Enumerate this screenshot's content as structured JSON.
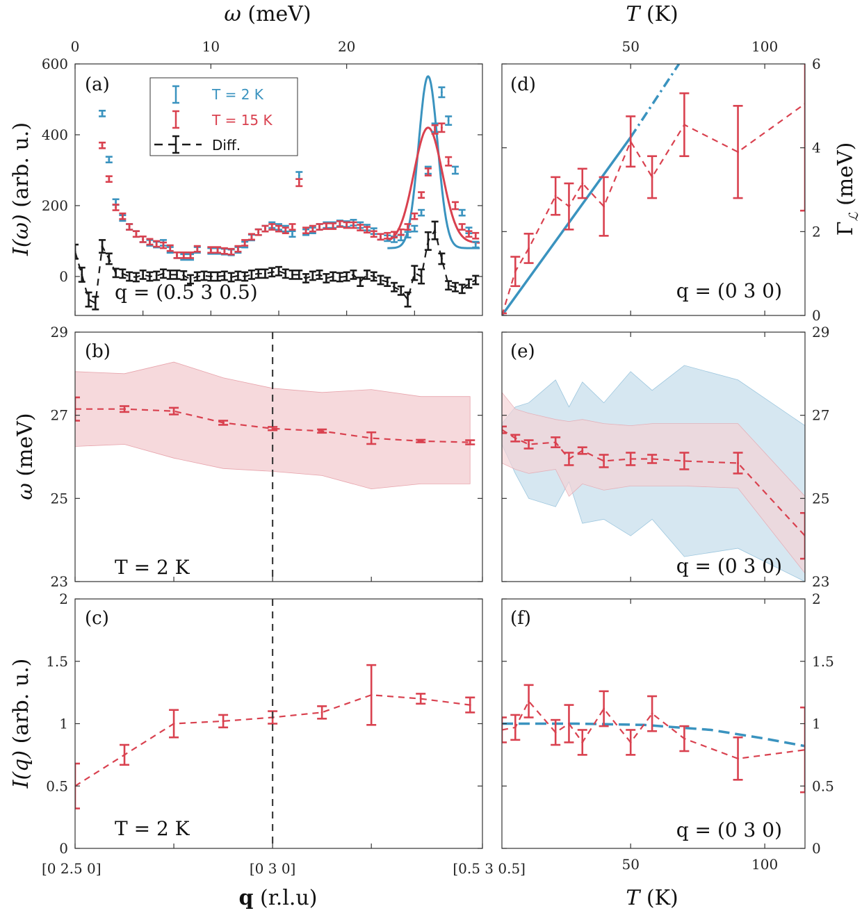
{
  "colors": {
    "blue": "#3a93bf",
    "red": "#d9414f",
    "black": "#1a1a1a",
    "blue_fill": "#cfe3ef",
    "red_fill": "#f5d2d6"
  },
  "chart_data": [
    {
      "panel": "(a)",
      "type": "scatter",
      "xlabel_parts": [
        "ω",
        " (meV)"
      ],
      "ylabel_parts": [
        "I(ω)",
        " (arb. u.)"
      ],
      "xlim": [
        0,
        30
      ],
      "ylim": [
        -110,
        600
      ],
      "xticks": [
        0,
        10,
        20
      ],
      "yticks": [
        0,
        200,
        400,
        600
      ],
      "annotation": "q = (0.5 3 0.5)",
      "legend": [
        "T = 2 K",
        "T = 15 K",
        "Diff."
      ],
      "series": [
        {
          "name": "T = 2 K",
          "color": "blue",
          "x": [
            2,
            2.5,
            3,
            3.5,
            4,
            4.5,
            5,
            5.5,
            6,
            6.5,
            7,
            7.5,
            8,
            8.5,
            9,
            10,
            10.5,
            11,
            11.5,
            12,
            12.5,
            13,
            13.5,
            14,
            14.5,
            15,
            15.5,
            16,
            16.5,
            17,
            17.5,
            18,
            18.5,
            19,
            19.5,
            20,
            20.5,
            21,
            21.5,
            22,
            22.5,
            23,
            23.5,
            24,
            24.5,
            25,
            25.5,
            26,
            26.5,
            27,
            27.5,
            28,
            28.5,
            29,
            29.5
          ],
          "y": [
            460,
            330,
            210,
            165,
            140,
            120,
            105,
            95,
            90,
            95,
            75,
            60,
            55,
            55,
            75,
            72,
            72,
            70,
            68,
            75,
            90,
            110,
            125,
            135,
            145,
            140,
            135,
            120,
            285,
            125,
            130,
            140,
            145,
            145,
            150,
            148,
            152,
            145,
            138,
            128,
            112,
            108,
            105,
            110,
            118,
            135,
            180,
            300,
            420,
            520,
            440,
            300,
            180,
            130,
            90
          ],
          "yerr": [
            8,
            8,
            8,
            8,
            8,
            8,
            8,
            8,
            8,
            8,
            8,
            8,
            8,
            8,
            8,
            8,
            8,
            8,
            8,
            8,
            8,
            8,
            8,
            8,
            8,
            8,
            8,
            8,
            10,
            8,
            8,
            8,
            8,
            8,
            8,
            8,
            8,
            8,
            8,
            8,
            8,
            8,
            8,
            8,
            8,
            8,
            8,
            10,
            12,
            14,
            12,
            10,
            8,
            8,
            8
          ],
          "fit": {
            "baseline": 80,
            "amplitude": 485,
            "center": 26.0,
            "sigma": 0.7,
            "xrange": [
              23,
              29.8
            ]
          }
        },
        {
          "name": "T = 15 K",
          "color": "red",
          "x": [
            2,
            2.5,
            3,
            3.5,
            4,
            4.5,
            5,
            5.5,
            6,
            6.5,
            7,
            7.5,
            8,
            8.5,
            9,
            10,
            10.5,
            11,
            11.5,
            12,
            12.5,
            13,
            13.5,
            14,
            14.5,
            15,
            15.5,
            16,
            16.5,
            17,
            17.5,
            18,
            18.5,
            19,
            19.5,
            20,
            20.5,
            21,
            21.5,
            22,
            22.5,
            23,
            23.5,
            24,
            24.5,
            25,
            25.5,
            26,
            26.5,
            27,
            27.5,
            28,
            28.5,
            29,
            29.5
          ],
          "y": [
            370,
            275,
            195,
            170,
            140,
            120,
            105,
            98,
            92,
            88,
            80,
            60,
            60,
            60,
            78,
            75,
            75,
            72,
            70,
            78,
            95,
            112,
            125,
            135,
            140,
            135,
            130,
            140,
            265,
            130,
            135,
            140,
            142,
            142,
            148,
            145,
            145,
            138,
            132,
            120,
            112,
            115,
            118,
            125,
            140,
            170,
            230,
            295,
            415,
            420,
            325,
            200,
            140,
            120,
            115
          ],
          "yerr": [
            8,
            8,
            8,
            8,
            8,
            8,
            8,
            8,
            8,
            8,
            8,
            8,
            8,
            8,
            8,
            8,
            8,
            8,
            8,
            8,
            8,
            8,
            8,
            8,
            8,
            8,
            8,
            8,
            10,
            8,
            8,
            8,
            8,
            8,
            8,
            8,
            8,
            8,
            8,
            8,
            8,
            8,
            8,
            8,
            8,
            8,
            8,
            10,
            12,
            12,
            12,
            10,
            8,
            8,
            8
          ],
          "fit": {
            "baseline": 95,
            "amplitude": 325,
            "center": 26.0,
            "sigma": 1.05,
            "xrange": [
              23,
              29.8
            ]
          }
        },
        {
          "name": "Diff.",
          "color": "black",
          "x": [
            0,
            0.5,
            1,
            1.5,
            2,
            2.5,
            3,
            3.5,
            4,
            4.5,
            5,
            5.5,
            6,
            6.5,
            7,
            7.5,
            8,
            8.5,
            9,
            9.5,
            10,
            10.5,
            11,
            11.5,
            12,
            12.5,
            13,
            13.5,
            14,
            14.5,
            15,
            15.5,
            16,
            16.5,
            17,
            17.5,
            18,
            18.5,
            19,
            19.5,
            20,
            20.5,
            21,
            21.5,
            22,
            22.5,
            23,
            23.5,
            24,
            24.5,
            25,
            25.5,
            26,
            26.5,
            27,
            27.5,
            28,
            28.5,
            29,
            29.5
          ],
          "y": [
            70,
            5,
            -65,
            -75,
            85,
            50,
            10,
            8,
            0,
            -2,
            5,
            0,
            2,
            8,
            5,
            5,
            3,
            -8,
            0,
            2,
            0,
            0,
            2,
            -2,
            2,
            0,
            5,
            8,
            8,
            12,
            15,
            8,
            5,
            5,
            -5,
            2,
            5,
            -5,
            0,
            -2,
            0,
            5,
            -15,
            5,
            0,
            -10,
            -15,
            -30,
            -40,
            -65,
            10,
            0,
            100,
            130,
            50,
            -25,
            -30,
            -35,
            -20,
            -10
          ],
          "yerr": [
            20,
            20,
            20,
            18,
            18,
            15,
            12,
            12,
            12,
            12,
            12,
            12,
            12,
            12,
            12,
            12,
            12,
            12,
            12,
            12,
            12,
            12,
            12,
            12,
            12,
            12,
            12,
            12,
            12,
            12,
            12,
            12,
            12,
            12,
            12,
            12,
            12,
            12,
            12,
            12,
            12,
            12,
            12,
            12,
            12,
            12,
            12,
            12,
            12,
            20,
            20,
            20,
            25,
            25,
            15,
            12,
            12,
            12,
            12,
            12
          ]
        }
      ]
    },
    {
      "panel": "(b)",
      "type": "line",
      "xlabel_parts": [
        "q",
        " (r.l.u)"
      ],
      "ylabel_parts": [
        "ω",
        " (meV)"
      ],
      "ylim": [
        23,
        29
      ],
      "yticks": [
        23,
        25,
        27,
        29
      ],
      "tick_labels": [
        "[0 2.5 0]",
        "[0 3 0]",
        "[0.5 3 0.5]"
      ],
      "annotation": "T = 2 K",
      "series": [
        {
          "name": "T = 2 K",
          "color": "red",
          "x": [
            0,
            1,
            2,
            3,
            4,
            5,
            6,
            7,
            8
          ],
          "y": [
            27.15,
            27.15,
            27.1,
            26.82,
            26.68,
            26.62,
            26.45,
            26.38,
            26.35
          ],
          "yerr": [
            0.28,
            0.07,
            0.08,
            0.05,
            0.04,
            0.04,
            0.14,
            0.03,
            0.05
          ],
          "band_upper": [
            28.05,
            28.0,
            28.28,
            27.9,
            27.65,
            27.55,
            27.62,
            27.45,
            27.45
          ],
          "band_lower": [
            26.25,
            26.3,
            25.97,
            25.72,
            25.65,
            25.55,
            25.23,
            25.35,
            25.35
          ]
        }
      ]
    },
    {
      "panel": "(c)",
      "type": "line",
      "xlabel_parts": [
        "q",
        " (r.l.u)"
      ],
      "ylabel_parts": [
        "I(q)",
        " (arb. u.)"
      ],
      "ylim": [
        0,
        2
      ],
      "yticks": [
        0,
        0.5,
        1,
        1.5,
        2
      ],
      "tick_labels": [
        "[0 2.5 0]",
        "[0 3 0]",
        "[0.5 3 0.5]"
      ],
      "annotation": "T = 2 K",
      "series": [
        {
          "name": "T = 2 K",
          "color": "red",
          "x": [
            0,
            1,
            2,
            3,
            4,
            5,
            6,
            7,
            8
          ],
          "y": [
            0.5,
            0.75,
            1.0,
            1.02,
            1.05,
            1.09,
            1.23,
            1.2,
            1.15
          ],
          "yerr": [
            0.18,
            0.08,
            0.11,
            0.05,
            0.05,
            0.05,
            0.24,
            0.04,
            0.06
          ]
        }
      ]
    },
    {
      "panel": "(d)",
      "type": "line",
      "xlabel_parts": [
        "T",
        " (K)"
      ],
      "ylabel_parts": [
        "Γ",
        " (meV)"
      ],
      "ylabel_subscript": "ℒ",
      "xlim": [
        2,
        115
      ],
      "ylim": [
        0,
        6
      ],
      "xticks": [
        50,
        100
      ],
      "yticks": [
        0,
        2,
        4,
        6
      ],
      "annotation": "q = (0 3 0)",
      "series": [
        {
          "name": "data",
          "color": "red",
          "x": [
            2,
            7,
            12,
            22,
            27,
            32,
            40,
            50,
            58,
            70,
            90,
            115
          ],
          "y": [
            0,
            1.05,
            1.6,
            2.85,
            2.6,
            3.15,
            2.6,
            4.15,
            3.3,
            4.55,
            3.9,
            5.05
          ],
          "yerr": [
            0.05,
            0.35,
            0.35,
            0.45,
            0.55,
            0.35,
            0.7,
            0.6,
            0.5,
            0.75,
            1.1,
            2.55
          ]
        },
        {
          "name": "linear fit",
          "color": "blue",
          "x": [
            2,
            50
          ],
          "y": [
            0,
            4.25
          ],
          "dashed_to": [
            68,
            6.0
          ]
        }
      ]
    },
    {
      "panel": "(e)",
      "type": "line",
      "xlabel_parts": [
        "T",
        " (K)"
      ],
      "ylabel_parts": [
        "ω",
        " (meV)"
      ],
      "xlim": [
        2,
        115
      ],
      "ylim": [
        23,
        29
      ],
      "xticks": [
        50,
        100
      ],
      "yticks": [
        23,
        25,
        27,
        29
      ],
      "annotation": "q = (0 3 0)",
      "series": [
        {
          "name": "data",
          "color": "red",
          "x": [
            2,
            7,
            12,
            22,
            27,
            32,
            40,
            50,
            58,
            70,
            90,
            115
          ],
          "y": [
            26.65,
            26.45,
            26.3,
            26.35,
            25.95,
            26.15,
            25.9,
            25.95,
            25.95,
            25.9,
            25.85,
            24.1
          ],
          "yerr": [
            0.08,
            0.08,
            0.1,
            0.12,
            0.15,
            0.08,
            0.15,
            0.15,
            0.1,
            0.2,
            0.25,
            0.55
          ],
          "band_upper": [
            27.55,
            27.15,
            27.05,
            26.9,
            26.85,
            26.9,
            26.8,
            26.75,
            26.8,
            26.8,
            26.8,
            25.05
          ],
          "band_lower": [
            25.85,
            25.7,
            25.6,
            25.7,
            25.05,
            25.35,
            25.2,
            25.3,
            25.3,
            25.3,
            25.25,
            23.2
          ]
        },
        {
          "name": "blue band",
          "color": "blue",
          "x": [
            2,
            7,
            12,
            22,
            27,
            32,
            40,
            50,
            58,
            70,
            90,
            115
          ],
          "band_upper": [
            26.8,
            27.2,
            27.3,
            27.85,
            27.2,
            27.8,
            27.3,
            28.05,
            27.6,
            28.2,
            27.85,
            26.75
          ],
          "band_lower": [
            26.3,
            25.6,
            25.0,
            24.8,
            25.4,
            24.4,
            24.5,
            24.1,
            24.5,
            23.6,
            23.8,
            23.0
          ]
        }
      ]
    },
    {
      "panel": "(f)",
      "type": "line",
      "xlabel_parts": [
        "T",
        " (K)"
      ],
      "ylabel_parts": [
        "",
        ""
      ],
      "xlim": [
        2,
        115
      ],
      "ylim": [
        0,
        2
      ],
      "xticks": [
        50,
        100
      ],
      "yticks": [
        0,
        0.5,
        1,
        1.5,
        2
      ],
      "annotation": "q = (0 3 0)",
      "series": [
        {
          "name": "data",
          "color": "red",
          "x": [
            2,
            7,
            12,
            22,
            27,
            32,
            40,
            50,
            58,
            70,
            90,
            115
          ],
          "y": [
            0.95,
            0.97,
            1.18,
            0.93,
            1.0,
            0.85,
            1.12,
            0.85,
            1.08,
            0.88,
            0.72,
            0.79
          ],
          "yerr": [
            0.1,
            0.1,
            0.13,
            0.1,
            0.15,
            0.1,
            0.14,
            0.1,
            0.14,
            0.1,
            0.17,
            0.34
          ]
        },
        {
          "name": "model",
          "color": "blue",
          "x": [
            2,
            30,
            55,
            80,
            100,
            115
          ],
          "y": [
            1.0,
            1.0,
            0.99,
            0.95,
            0.88,
            0.82
          ]
        }
      ]
    }
  ]
}
